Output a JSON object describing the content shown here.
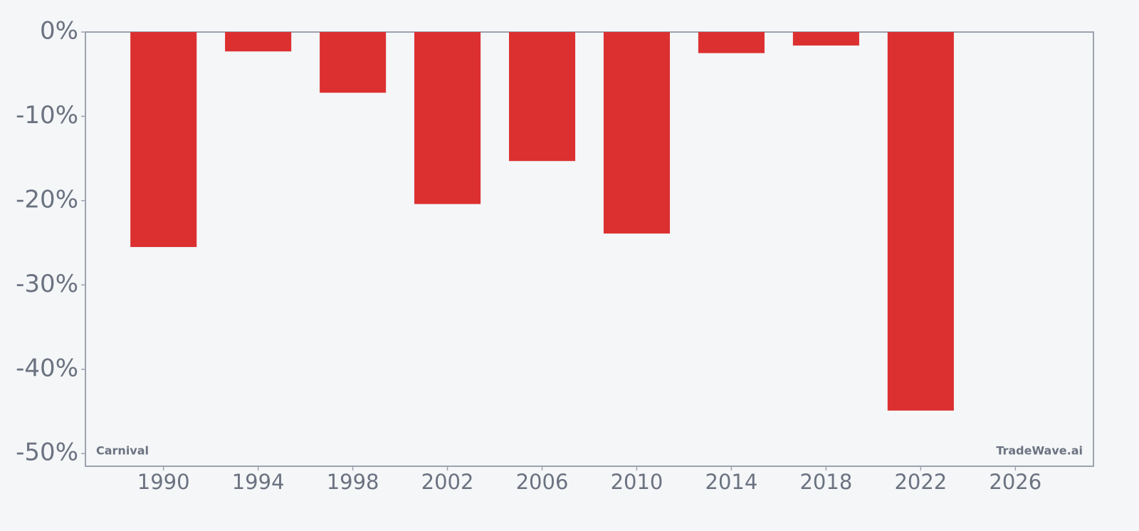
{
  "chart_data": {
    "type": "bar",
    "x": [
      1990,
      1994,
      1998,
      2002,
      2006,
      2010,
      2014,
      2018,
      2022
    ],
    "values": [
      -25.5,
      -2.3,
      -7.2,
      -20.4,
      -15.3,
      -23.9,
      -2.5,
      -1.6,
      -44.9
    ],
    "color": "#dc3030",
    "xlim": [
      1986.7,
      2029.3
    ],
    "xticks": [
      1990,
      1994,
      1998,
      2002,
      2006,
      2010,
      2014,
      2018,
      2022,
      2026
    ],
    "ylim": [
      -51.5,
      0
    ],
    "yticks": [
      {
        "value": 0,
        "label": "0%"
      },
      {
        "value": -10,
        "label": "-10%"
      },
      {
        "value": -20,
        "label": "-20%"
      },
      {
        "value": -30,
        "label": "-30%"
      },
      {
        "value": -40,
        "label": "-40%"
      },
      {
        "value": -50,
        "label": "-50%"
      }
    ],
    "grid": false,
    "ticker_label": "Carnival",
    "watermark": "TradeWave.ai"
  }
}
